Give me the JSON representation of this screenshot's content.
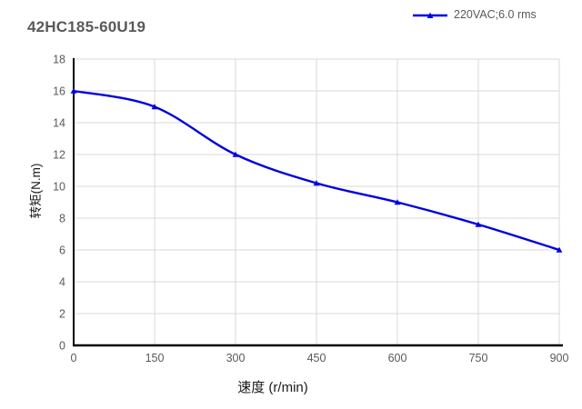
{
  "title": "42HC185-60U19",
  "legend": {
    "label": "220VAC;6.0 rms"
  },
  "colors": {
    "line": "#0000e0",
    "grid": "#d9d9d9",
    "axis": "#000000",
    "tick_text": "#595959",
    "title_text": "#595959",
    "axis_label_text": "#1a1a1a",
    "background": "#ffffff"
  },
  "chart_data": {
    "type": "line",
    "title": "42HC185-60U19",
    "xlabel": "速度 (r/min)",
    "ylabel": "转矩(N.m)",
    "x": [
      0,
      150,
      300,
      450,
      600,
      750,
      900
    ],
    "series": [
      {
        "name": "220VAC;6.0 rms",
        "values": [
          16,
          15,
          12,
          10.2,
          9,
          7.6,
          6
        ]
      }
    ],
    "xlim": [
      0,
      900
    ],
    "ylim": [
      0,
      18
    ],
    "x_ticks": [
      0,
      150,
      300,
      450,
      600,
      750,
      900
    ],
    "y_ticks": [
      0,
      2,
      4,
      6,
      8,
      10,
      12,
      14,
      16,
      18
    ],
    "grid": true,
    "smooth": true,
    "marker": "triangle",
    "legend_position": "top-right"
  }
}
